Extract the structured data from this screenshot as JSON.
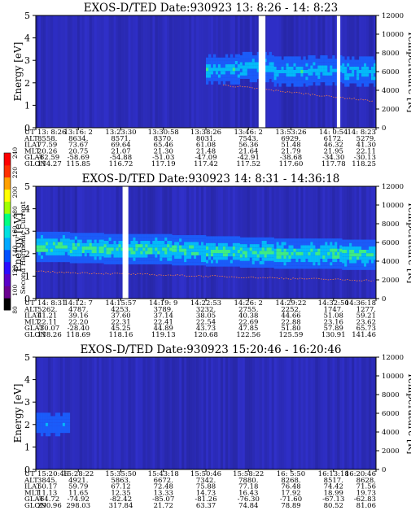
{
  "chart_data": [
    {
      "type": "heatmap",
      "title": "EXOS-D/TED   Date:930923  13: 8:26 - 14: 8:23",
      "ylabel": "Energy [eV]",
      "y2label": "Temperature [K]",
      "ylim": [
        0,
        5
      ],
      "y2lim": [
        0,
        12000
      ],
      "yticks": [
        "0",
        "1",
        "2",
        "3",
        "4",
        "5"
      ],
      "y2ticks": [
        "0",
        "2000",
        "4000",
        "6000",
        "8000",
        "10000",
        "12000"
      ],
      "band": {
        "center_ev": [
          null,
          null,
          null,
          null,
          null,
          2.6,
          2.7,
          2.5,
          2.55,
          2.5
        ],
        "peak_level": 0.45
      },
      "data_gaps_fraction": [
        [
          0.0,
          0.0
        ]
      ],
      "table": {
        "row_labels": [
          "UT",
          "ALT",
          "ILAT",
          "MLT",
          "GLAT",
          "GLON"
        ],
        "columns": [
          [
            "13: 8:26",
            "8558.",
            "77.59",
            "20.26",
            "-62.59",
            "114.27"
          ],
          [
            "13:16: 2",
            "8634.",
            "73.67",
            "20.75",
            "-58.69",
            "115.85"
          ],
          [
            "13:23:30",
            "8571.",
            "69.64",
            "21.07",
            "-54.88",
            "116.72"
          ],
          [
            "13:30:58",
            "8370.",
            "65.46",
            "21.30",
            "-51.03",
            "117.19"
          ],
          [
            "13:38:26",
            "8031.",
            "61.08",
            "21.48",
            "-47.09",
            "117.42"
          ],
          [
            "13:46: 2",
            "7543.",
            "56.36",
            "21.64",
            "-42.91",
            "117.52"
          ],
          [
            "13:53:26",
            "6929.",
            "51.48",
            "21.79",
            "-38.68",
            "117.60"
          ],
          [
            "14: 0:54",
            "6172.",
            "46.32",
            "21.95",
            "-34.30",
            "117.78"
          ],
          [
            "14: 8:23",
            "5279.",
            "41.30",
            "22.11",
            "-30.13",
            "118.25"
          ]
        ]
      }
    },
    {
      "type": "heatmap",
      "title": "EXOS-D/TED   Date:930923  14: 8:31 - 14:36:18",
      "ylabel": "Energy [eV]",
      "y2label": "Temperature [K]",
      "ylim": [
        0,
        5
      ],
      "y2lim": [
        0,
        12000
      ],
      "yticks": [
        "0",
        "1",
        "2",
        "3",
        "4",
        "5"
      ],
      "y2ticks": [
        "0",
        "2000",
        "4000",
        "6000",
        "8000",
        "10000",
        "12000"
      ],
      "band": {
        "center_ev": [
          2.3,
          2.25,
          2.2,
          2.2,
          2.15,
          2.1,
          2.05,
          2.0,
          2.0,
          1.95
        ],
        "peak_level": 0.6
      },
      "table": {
        "row_labels": [
          "UT",
          "ALT",
          "ILAT",
          "MLT",
          "GLAT",
          "GLON"
        ],
        "columns": [
          [
            "14: 8:31",
            "5262.",
            "41.21",
            "22.11",
            "-30.07",
            "118.26"
          ],
          [
            "14:12: 7",
            "4787.",
            "39.16",
            "22.20",
            "-28.40",
            "118.69"
          ],
          [
            "14:15:57",
            "4253.",
            "37.60",
            "22.31",
            "45.25",
            "118.16"
          ],
          [
            "14:19: 9",
            "3789.",
            "37.14",
            "22.41",
            "44.89",
            "119.13"
          ],
          [
            "14:22:53",
            "3232.",
            "38.05",
            "22.54",
            "43.73",
            "120.68"
          ],
          [
            "14:26: 2",
            "2755.",
            "40.38",
            "22.69",
            "47.85",
            "122.56"
          ],
          [
            "14:29:22",
            "2252.",
            "44.66",
            "22.88",
            "51.80",
            "125.59"
          ],
          [
            "14:32:50",
            "1747.",
            "51.08",
            "23.16",
            "57.89",
            "130.91"
          ],
          [
            "14:36:18",
            "1277.",
            "59.21",
            "23.62",
            "65.73",
            "141.46"
          ]
        ]
      }
    },
    {
      "type": "heatmap",
      "title": "EXOS-D/TED   Date:930923  15:20:46 - 16:20:46",
      "ylabel": "Energy [eV]",
      "y2label": "Temperature [K]",
      "ylim": [
        0,
        5
      ],
      "y2lim": [
        0,
        12000
      ],
      "yticks": [
        "0",
        "1",
        "2",
        "3",
        "4",
        "5"
      ],
      "y2ticks": [
        "0",
        "2000",
        "4000",
        "6000",
        "8000",
        "10000",
        "12000"
      ],
      "band": {
        "center_ev": [
          2.0,
          null,
          null,
          null,
          null,
          null,
          null,
          null,
          null,
          null
        ],
        "peak_level": 0.3
      },
      "table": {
        "row_labels": [
          "UT",
          "ALT",
          "ILAT",
          "MLT",
          "GLAT",
          "GLON"
        ],
        "columns": [
          [
            "15:20:46",
            "3845.",
            "50.17",
            "11.13",
            "-64.72",
            "290.96"
          ],
          [
            "15:28:22",
            "4921.",
            "59.79",
            "11.65",
            "-74.92",
            "298.03"
          ],
          [
            "15:35:50",
            "5863.",
            "67.12",
            "12.35",
            "-82.42",
            "317.84"
          ],
          [
            "15:43:18",
            "6672.",
            "72.48",
            "13.33",
            "-85.07",
            "21.72"
          ],
          [
            "15:50:46",
            "7342.",
            "75.88",
            "14.73",
            "-81.26",
            "63.37"
          ],
          [
            "15:58:22",
            "7880.",
            "77.18",
            "16.43",
            "-76.30",
            "74.84"
          ],
          [
            "16: 5:50",
            "8268.",
            "76.48",
            "17.92",
            "-71.60",
            "78.89"
          ],
          [
            "16:13:18",
            "8517.",
            "74.42",
            "18.99",
            "-67.13",
            "80.52"
          ],
          [
            "16:20:46",
            "8628.",
            "71.56",
            "19.73",
            "-62.83",
            "81.06"
          ]
        ]
      }
    }
  ],
  "colorbar": {
    "label": "Second Harmonic Current",
    "ticks": [
      "80",
      "100",
      "120",
      "140",
      "160",
      "180",
      "200",
      "220",
      "240"
    ],
    "colors": [
      "#000000",
      "#6a0090",
      "#5a00c8",
      "#2a0cff",
      "#0050ff",
      "#00a8ff",
      "#00e0e0",
      "#00ff80",
      "#a0ff00",
      "#ffff00",
      "#ffa000",
      "#ff3000",
      "#ff0000"
    ]
  },
  "colors": {
    "background": "#2a2ac0",
    "band_low": "#1a60ff",
    "band_mid": "#00c8ff",
    "band_high": "#40ff80",
    "temperature_trace": "#ff8040"
  }
}
